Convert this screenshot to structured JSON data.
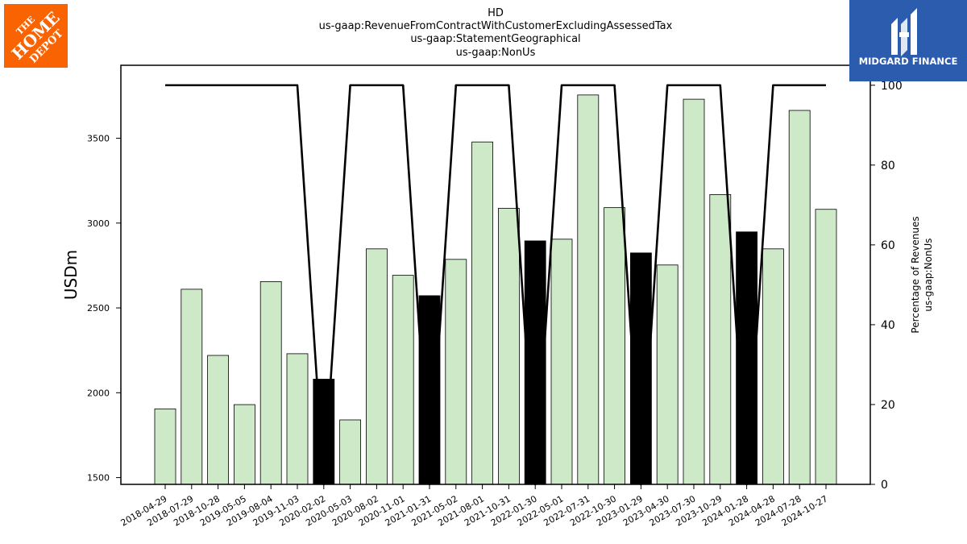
{
  "logos": {
    "left": {
      "name": "The Home Depot",
      "color": "#f96302"
    },
    "right": {
      "text": "MIDGARD FINANCE",
      "color": "#2b5cad"
    }
  },
  "chart_data": {
    "type": "bar",
    "title_lines": [
      "HD",
      "us-gaap:RevenueFromContractWithCustomerExcludingAssessedTax",
      "us-gaap:StatementGeographical",
      "us-gaap:NonUs"
    ],
    "ylabel": "USDm",
    "y2label_lines": [
      "Percentage of Revenues",
      "us-gaap:NonUs"
    ],
    "categories": [
      "2018-04-29",
      "2018-07-29",
      "2018-10-28",
      "2019-05-05",
      "2019-08-04",
      "2019-11-03",
      "2020-02-02",
      "2020-05-03",
      "2020-08-02",
      "2020-11-01",
      "2021-01-31",
      "2021-05-02",
      "2021-08-01",
      "2021-10-31",
      "2022-01-30",
      "2022-05-01",
      "2022-07-31",
      "2022-10-30",
      "2023-01-29",
      "2023-04-30",
      "2023-07-30",
      "2023-10-29",
      "2024-01-28",
      "2024-04-28",
      "2024-07-28",
      "2024-10-27"
    ],
    "values": [
      1905,
      2610,
      2220,
      1930,
      2655,
      2230,
      2080,
      1840,
      2848,
      2692,
      2572,
      2786,
      3478,
      3087,
      2895,
      2905,
      3755,
      3091,
      2824,
      2753,
      3730,
      3168,
      2948,
      2848,
      3664,
      3081
    ],
    "highlight": [
      false,
      false,
      false,
      false,
      false,
      false,
      true,
      false,
      false,
      false,
      true,
      false,
      false,
      false,
      true,
      false,
      false,
      false,
      true,
      false,
      false,
      false,
      true,
      false,
      false,
      false
    ],
    "bar_color": "#cde9c8",
    "highlight_color": "#000000",
    "line_series": {
      "name": "Percentage of Revenues",
      "values": [
        100,
        100,
        100,
        100,
        100,
        100,
        0,
        100,
        100,
        100,
        0,
        100,
        100,
        100,
        0,
        100,
        100,
        100,
        0,
        100,
        100,
        100,
        0,
        100,
        100,
        100
      ]
    },
    "ylim": [
      1460,
      3930
    ],
    "y_ticks": [
      1500,
      2000,
      2500,
      3000,
      3500
    ],
    "y2lim": [
      0,
      105
    ],
    "y2_ticks": [
      0,
      20,
      40,
      60,
      80,
      100
    ]
  }
}
